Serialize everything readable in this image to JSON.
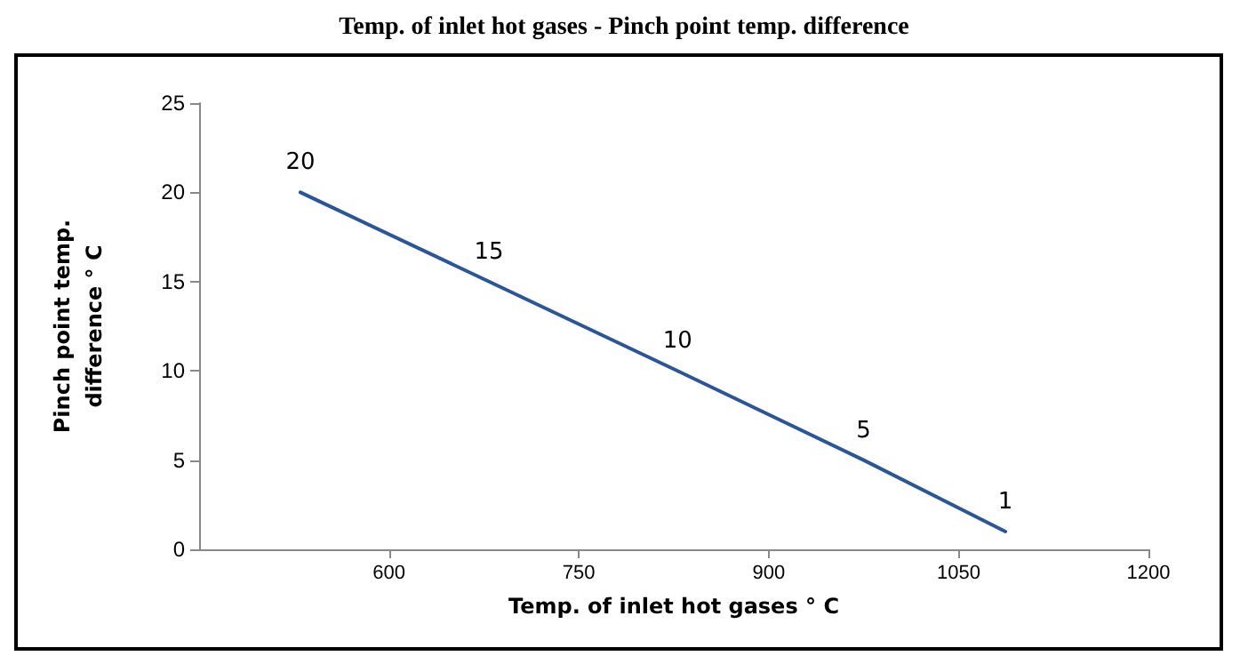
{
  "chart_data": {
    "type": "line",
    "title": "Temp. of inlet hot gases - Pinch point temp. difference",
    "xlabel": "Temp. of inlet hot gases ° C",
    "ylabel": "Pinch point temp.\ndifference ° C",
    "x": [
      530,
      679,
      828,
      975,
      1087
    ],
    "series": [
      {
        "color": "#2a5599",
        "values": [
          20,
          15,
          10,
          5,
          1
        ]
      }
    ],
    "xlim": [
      450,
      1200
    ],
    "xticks": [
      600,
      750,
      900,
      1050,
      1200
    ],
    "ylim": [
      0,
      25
    ],
    "yticks": [
      0,
      5,
      10,
      15,
      20,
      25
    ],
    "grid": false,
    "marker": "none",
    "line_style": "solid",
    "data_labels": true
  }
}
